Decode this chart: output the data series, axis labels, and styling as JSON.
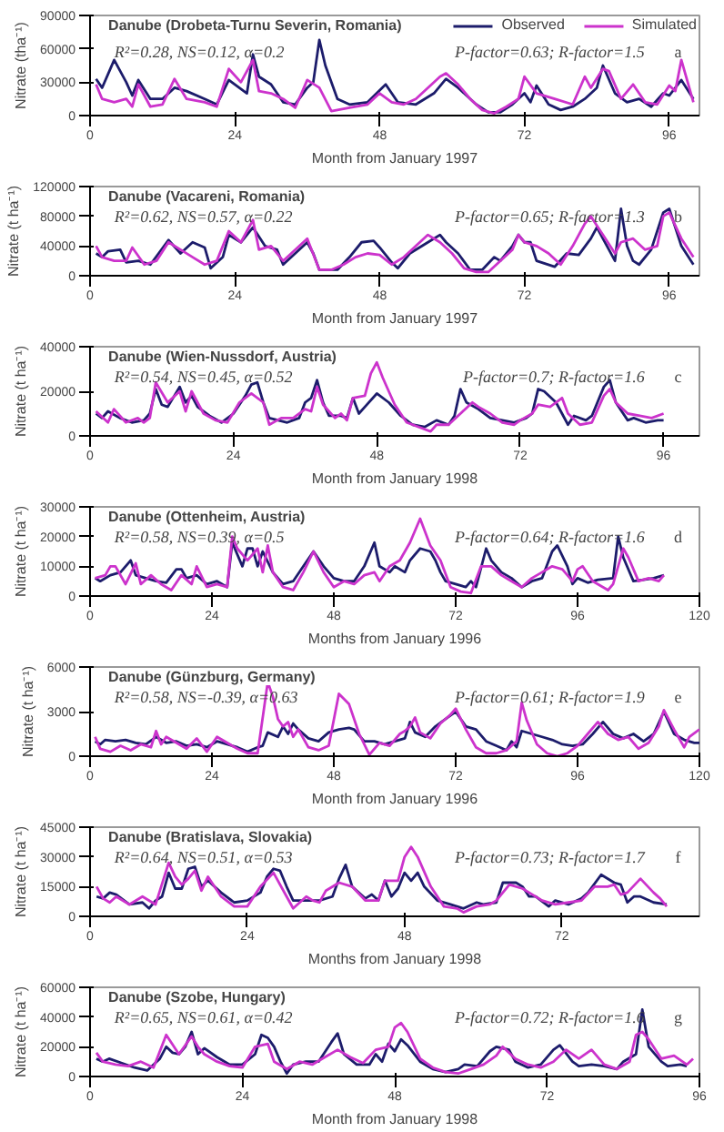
{
  "chart_data": [
    {
      "type": "line",
      "title": "Danube (Drobeta-Turnu Severin, Romania)",
      "xlabel": "Month from January 1997",
      "ylabel": "Nitrate (tha⁻¹)",
      "annotations": [
        "R²=0.28, NS=0.12, α=0.2",
        "P-factor=0.63; R-factor=1.5",
        "a"
      ],
      "xlim": [
        0,
        101
      ],
      "xticks": [
        0,
        24,
        48,
        72,
        96
      ],
      "ylim": [
        0,
        90000
      ],
      "yticks": [
        0,
        30000,
        60000,
        90000
      ],
      "legend": "top right",
      "line_style": "solid",
      "series": [
        {
          "name": "Observed",
          "color": "#1c1c6b",
          "x": [
            1,
            2,
            4,
            6,
            7,
            8,
            10,
            12,
            14,
            16,
            19,
            21,
            23,
            26,
            27,
            28,
            30,
            32,
            34,
            36,
            37,
            38,
            39,
            41,
            43,
            46,
            49,
            51,
            54,
            57,
            59,
            61,
            64,
            66,
            68,
            70,
            72,
            73,
            74,
            76,
            78,
            80,
            82,
            84,
            85,
            87,
            89,
            91,
            93,
            95,
            96,
            98,
            100
          ],
          "values": [
            33000,
            25000,
            50000,
            30000,
            18000,
            32000,
            15000,
            15000,
            25000,
            22000,
            15000,
            10000,
            32000,
            20000,
            55000,
            35000,
            28000,
            12000,
            10000,
            25000,
            30000,
            68000,
            45000,
            15000,
            10000,
            12000,
            28000,
            12000,
            10000,
            20000,
            33000,
            25000,
            10000,
            3000,
            3000,
            10000,
            20000,
            12000,
            27000,
            10000,
            5000,
            8000,
            15000,
            25000,
            45000,
            20000,
            12000,
            15000,
            8000,
            20000,
            18000,
            32000,
            15000
          ]
        },
        {
          "name": "Simulated",
          "color": "#cc33cc",
          "x": [
            1,
            2,
            4,
            6,
            7,
            8,
            10,
            12,
            14,
            16,
            19,
            21,
            23,
            25,
            27,
            28,
            30,
            32,
            34,
            36,
            38,
            40,
            43,
            46,
            48,
            50,
            52,
            54,
            56,
            58,
            59,
            61,
            63,
            65,
            67,
            69,
            71,
            72,
            74,
            77,
            80,
            82,
            83,
            85,
            86,
            88,
            90,
            92,
            94,
            96,
            97,
            98,
            100
          ],
          "values": [
            28000,
            15000,
            12000,
            15000,
            8000,
            28000,
            8000,
            10000,
            33000,
            15000,
            12000,
            8000,
            42000,
            30000,
            50000,
            22000,
            20000,
            15000,
            7000,
            32000,
            25000,
            4000,
            7000,
            10000,
            20000,
            12000,
            10000,
            15000,
            25000,
            35000,
            38000,
            28000,
            15000,
            5000,
            2000,
            8000,
            15000,
            35000,
            20000,
            15000,
            10000,
            35000,
            25000,
            42000,
            40000,
            15000,
            28000,
            12000,
            10000,
            27000,
            22000,
            50000,
            12000
          ]
        }
      ]
    },
    {
      "type": "line",
      "title": "Danube (Vacareni, Romania)",
      "xlabel": "Month from January 1997",
      "ylabel": "Nitrate (t ha⁻¹)",
      "annotations": [
        "R²=0.62, NS=0.57, α=0.22",
        "P-factor=0.65; R-factor=1.3",
        "b"
      ],
      "xlim": [
        0,
        101
      ],
      "xticks": [
        0,
        24,
        48,
        72,
        96
      ],
      "ylim": [
        0,
        120000
      ],
      "yticks": [
        0,
        40000,
        80000,
        120000
      ],
      "line_style": "solid",
      "series": [
        {
          "color": "#1c1c6b",
          "x": [
            1,
            2,
            3,
            5,
            6,
            8,
            10,
            13,
            15,
            17,
            19,
            20,
            22,
            23,
            25,
            27,
            29,
            31,
            32,
            34,
            36,
            37,
            38,
            41,
            43,
            45,
            47,
            48,
            50,
            51,
            53,
            56,
            58,
            59,
            61,
            63,
            65,
            67,
            68,
            70,
            71,
            72,
            73,
            74,
            77,
            79,
            81,
            83,
            84,
            86,
            87,
            88,
            89,
            90,
            91,
            93,
            95,
            96,
            98,
            100
          ],
          "values": [
            30000,
            25000,
            33000,
            35000,
            18000,
            20000,
            15000,
            48000,
            30000,
            45000,
            38000,
            10000,
            25000,
            55000,
            45000,
            65000,
            40000,
            35000,
            15000,
            30000,
            45000,
            30000,
            8000,
            8000,
            25000,
            45000,
            47000,
            38000,
            18000,
            10000,
            30000,
            45000,
            55000,
            45000,
            30000,
            8000,
            8000,
            25000,
            20000,
            40000,
            55000,
            45000,
            45000,
            20000,
            12000,
            30000,
            28000,
            50000,
            65000,
            35000,
            20000,
            90000,
            40000,
            20000,
            15000,
            35000,
            85000,
            90000,
            40000,
            15000
          ]
        },
        {
          "color": "#cc33cc",
          "x": [
            1,
            2,
            4,
            6,
            7,
            9,
            11,
            13,
            15,
            17,
            19,
            21,
            23,
            25,
            27,
            28,
            30,
            32,
            34,
            36,
            38,
            40,
            42,
            44,
            46,
            48,
            50,
            52,
            54,
            56,
            58,
            60,
            62,
            64,
            66,
            68,
            70,
            71,
            72,
            74,
            76,
            78,
            80,
            82,
            83,
            85,
            87,
            88,
            90,
            92,
            94,
            95,
            96,
            98,
            100
          ],
          "values": [
            40000,
            25000,
            20000,
            20000,
            38000,
            15000,
            20000,
            45000,
            35000,
            25000,
            15000,
            20000,
            60000,
            45000,
            75000,
            35000,
            40000,
            20000,
            35000,
            50000,
            8000,
            8000,
            15000,
            25000,
            30000,
            28000,
            15000,
            25000,
            40000,
            55000,
            45000,
            30000,
            10000,
            5000,
            5000,
            20000,
            35000,
            55000,
            45000,
            40000,
            30000,
            15000,
            40000,
            70000,
            80000,
            55000,
            30000,
            45000,
            50000,
            35000,
            40000,
            80000,
            85000,
            50000,
            25000
          ]
        }
      ]
    },
    {
      "type": "line",
      "title": "Danube (Wien-Nussdorf, Austria)",
      "xlabel": "Month from January 1998",
      "ylabel": "Nitrate (t ha⁻¹)",
      "annotations": [
        "R²=0.54, NS=0.45, α=0.52",
        "P-factor=0.7; R-factor=1.6",
        "c"
      ],
      "xlim": [
        0,
        102
      ],
      "xticks": [
        0,
        24,
        48,
        72,
        96
      ],
      "ylim": [
        0,
        40000
      ],
      "yticks": [
        0,
        20000,
        40000
      ],
      "line_style": "solid",
      "series": [
        {
          "color": "#1c1c6b",
          "x": [
            1,
            2,
            3,
            5,
            7,
            9,
            10,
            11,
            12,
            13,
            15,
            16,
            17,
            18,
            20,
            22,
            24,
            26,
            27,
            28,
            29,
            30,
            33,
            35,
            36,
            37,
            38,
            39,
            40,
            42,
            43,
            44,
            45,
            46,
            48,
            50,
            52,
            54,
            56,
            58,
            60,
            61,
            62,
            63,
            65,
            67,
            69,
            71,
            73,
            74,
            75,
            76,
            78,
            79,
            80,
            81,
            83,
            84,
            86,
            87,
            88,
            90,
            91,
            93,
            95,
            96
          ],
          "values": [
            10000,
            8000,
            11000,
            8000,
            6000,
            7000,
            10000,
            21000,
            14000,
            13000,
            22000,
            15000,
            18000,
            13000,
            9000,
            6000,
            10000,
            18000,
            23000,
            24000,
            15000,
            8000,
            6000,
            8000,
            15000,
            17000,
            25000,
            15000,
            9000,
            9000,
            8000,
            17000,
            10000,
            13000,
            19000,
            15000,
            9000,
            5000,
            4000,
            7000,
            5000,
            9000,
            21000,
            15000,
            12000,
            8000,
            7000,
            6000,
            8000,
            10000,
            21000,
            20000,
            15000,
            10000,
            5000,
            9000,
            7000,
            9000,
            22000,
            25000,
            15000,
            7000,
            8000,
            6000,
            7000,
            7000
          ]
        },
        {
          "color": "#cc33cc",
          "x": [
            1,
            3,
            4,
            6,
            8,
            9,
            10,
            11,
            13,
            15,
            16,
            17,
            19,
            21,
            23,
            25,
            27,
            29,
            30,
            32,
            34,
            36,
            37,
            38,
            39,
            41,
            42,
            43,
            44,
            46,
            47,
            48,
            49,
            51,
            53,
            55,
            57,
            58,
            60,
            62,
            64,
            65,
            67,
            69,
            71,
            72,
            74,
            75,
            77,
            79,
            80,
            82,
            84,
            86,
            87,
            88,
            90,
            92,
            94,
            96
          ],
          "values": [
            11000,
            6000,
            12000,
            6000,
            8000,
            6000,
            8000,
            24000,
            15000,
            20000,
            11000,
            20000,
            10000,
            7000,
            6000,
            15000,
            19000,
            15000,
            5000,
            8000,
            8000,
            12000,
            11000,
            22000,
            14000,
            8000,
            10000,
            7000,
            17000,
            18000,
            28000,
            33000,
            26000,
            14000,
            6000,
            4000,
            2000,
            5000,
            5000,
            10000,
            15000,
            13000,
            10000,
            6000,
            5000,
            7000,
            10000,
            14000,
            13000,
            17000,
            10000,
            5000,
            6000,
            18000,
            21000,
            15000,
            10000,
            9000,
            8000,
            10000
          ]
        }
      ]
    },
    {
      "type": "line",
      "title": "Danube (Ottenheim, Austria)",
      "xlabel": "Months from January 1996",
      "ylabel": "Nitrate (t ha⁻¹)",
      "annotations": [
        "R²=0.58, NS=0.39, α=0.5",
        "P-factor=0.64; R-factor=1.6",
        "d"
      ],
      "xlim": [
        0,
        120
      ],
      "xticks": [
        0,
        24,
        48,
        72,
        96,
        120
      ],
      "ylim": [
        0,
        30000
      ],
      "yticks": [
        0,
        10000,
        20000,
        30000
      ],
      "line_style": "solid",
      "series": [
        {
          "color": "#1c1c6b",
          "x": [
            1,
            2,
            4,
            6,
            8,
            9,
            11,
            13,
            15,
            17,
            18,
            19,
            21,
            23,
            25,
            27,
            28,
            30,
            31,
            32,
            33,
            34,
            36,
            38,
            40,
            42,
            44,
            46,
            48,
            50,
            52,
            54,
            56,
            57,
            59,
            60,
            62,
            63,
            65,
            67,
            68,
            69,
            70,
            72,
            74,
            75,
            76,
            78,
            79,
            81,
            83,
            85,
            87,
            89,
            91,
            92,
            94,
            95,
            96,
            98,
            100,
            103,
            104,
            105,
            107,
            109,
            111,
            113
          ],
          "values": [
            6000,
            5000,
            7000,
            8000,
            12000,
            7000,
            6000,
            5000,
            4500,
            9000,
            9000,
            6000,
            7000,
            4000,
            5000,
            3000,
            18000,
            10000,
            16000,
            16000,
            10000,
            15000,
            8000,
            4000,
            5000,
            10000,
            15000,
            10000,
            6000,
            5000,
            5000,
            10000,
            18000,
            10000,
            8000,
            10000,
            8000,
            12000,
            16000,
            15000,
            12000,
            8000,
            5000,
            4000,
            3000,
            5000,
            3000,
            16000,
            12000,
            8000,
            6000,
            3000,
            5000,
            6000,
            15000,
            17000,
            10000,
            4000,
            6000,
            4500,
            5500,
            6000,
            20000,
            13000,
            5000,
            5500,
            6000,
            7000
          ]
        },
        {
          "color": "#cc33cc",
          "x": [
            1,
            3,
            4,
            5,
            7,
            9,
            10,
            12,
            14,
            16,
            18,
            20,
            21,
            23,
            25,
            27,
            28,
            29,
            31,
            33,
            34,
            35,
            36,
            38,
            40,
            42,
            44,
            46,
            48,
            50,
            52,
            54,
            56,
            57,
            59,
            61,
            63,
            65,
            67,
            69,
            71,
            73,
            75,
            77,
            79,
            81,
            83,
            85,
            87,
            89,
            91,
            93,
            95,
            96,
            97,
            99,
            101,
            102,
            103,
            105,
            106,
            108,
            110,
            112,
            113
          ],
          "values": [
            6000,
            7000,
            10000,
            10000,
            4000,
            11000,
            4000,
            7000,
            4000,
            2000,
            7000,
            4000,
            10000,
            3000,
            4000,
            3000,
            20000,
            16000,
            12000,
            16000,
            8000,
            17000,
            8000,
            3000,
            2000,
            8000,
            15000,
            8000,
            3000,
            5000,
            4000,
            7000,
            8000,
            5000,
            10000,
            12000,
            18000,
            26000,
            17000,
            12000,
            3000,
            1500,
            1000,
            10000,
            10000,
            7000,
            5000,
            3000,
            6000,
            8000,
            10000,
            9000,
            5000,
            9000,
            10000,
            5000,
            3000,
            2000,
            4000,
            16000,
            13000,
            5000,
            6000,
            5000,
            7000
          ]
        }
      ]
    },
    {
      "type": "line",
      "title": "Danube (Günzburg, Germany)",
      "xlabel": "Month from January 1996",
      "ylabel": "Nitrate (t ha⁻¹)",
      "annotations": [
        "R²=0.58, NS=-0.39, α=0.63",
        "P-factor=0.61; R-factor=1.9",
        "e"
      ],
      "xlim": [
        0,
        120
      ],
      "xticks": [
        0,
        24,
        48,
        72,
        96,
        120
      ],
      "ylim": [
        0,
        6000
      ],
      "yticks": [
        0,
        3000,
        6000
      ],
      "line_style": "solid",
      "series": [
        {
          "color": "#1c1c6b",
          "x": [
            1,
            2,
            3,
            5,
            7,
            9,
            11,
            13,
            15,
            17,
            19,
            21,
            23,
            25,
            27,
            29,
            31,
            33,
            34,
            35,
            37,
            38,
            39,
            40,
            41,
            43,
            45,
            47,
            49,
            51,
            52,
            54,
            56,
            58,
            60,
            62,
            63,
            64,
            66,
            68,
            70,
            72,
            74,
            76,
            78,
            80,
            82,
            83,
            84,
            85,
            87,
            89,
            91,
            93,
            95,
            97,
            99,
            101,
            103,
            105,
            107,
            109,
            111,
            113,
            115,
            117,
            119,
            120
          ],
          "values": [
            1000,
            800,
            1100,
            1000,
            1100,
            900,
            800,
            1300,
            900,
            1000,
            700,
            800,
            600,
            1000,
            800,
            600,
            300,
            600,
            700,
            1600,
            1300,
            2000,
            1500,
            2200,
            1800,
            1200,
            1000,
            1600,
            1800,
            1900,
            1800,
            1000,
            1000,
            800,
            1000,
            1200,
            2300,
            1600,
            1300,
            2000,
            2500,
            3000,
            2000,
            1800,
            1000,
            700,
            400,
            1000,
            600,
            1700,
            1500,
            1300,
            1100,
            800,
            700,
            800,
            1500,
            2300,
            1500,
            1200,
            1500,
            1000,
            1500,
            3000,
            1500,
            1100,
            900,
            900
          ]
        },
        {
          "color": "#cc33cc",
          "x": [
            1,
            2,
            4,
            6,
            8,
            10,
            12,
            13,
            14,
            15,
            17,
            19,
            21,
            23,
            25,
            27,
            29,
            31,
            33,
            35,
            36,
            37,
            38,
            39,
            40,
            41,
            43,
            45,
            47,
            49,
            51,
            53,
            55,
            57,
            59,
            61,
            62,
            63,
            64,
            65,
            67,
            69,
            71,
            72,
            74,
            76,
            78,
            80,
            82,
            84,
            85,
            86,
            88,
            90,
            92,
            94,
            96,
            98,
            100,
            102,
            104,
            106,
            108,
            110,
            112,
            113,
            115,
            117,
            118,
            120
          ],
          "values": [
            1300,
            500,
            300,
            700,
            400,
            800,
            600,
            1700,
            800,
            1300,
            900,
            500,
            1200,
            300,
            1300,
            900,
            500,
            200,
            200,
            5000,
            4000,
            2500,
            2000,
            2300,
            1300,
            1800,
            600,
            400,
            700,
            4200,
            3500,
            1500,
            100,
            900,
            700,
            1500,
            1700,
            2000,
            2600,
            1600,
            1200,
            2200,
            2800,
            3200,
            1800,
            600,
            200,
            200,
            400,
            1000,
            3600,
            2400,
            800,
            200,
            0,
            200,
            700,
            1500,
            2300,
            1500,
            1100,
            1300,
            500,
            900,
            2000,
            3100,
            1800,
            600,
            1300,
            1800
          ]
        }
      ]
    },
    {
      "type": "line",
      "title": "Danube (Bratislava, Slovakia)",
      "xlabel": "Months from January 1998",
      "ylabel": "Nitrate (t ha⁻¹)",
      "annotations": [
        "R²=0.64, NS=0.51, α=0.53",
        "P-factor=0.73; R-factor=1.7",
        "f"
      ],
      "xlim": [
        0,
        93
      ],
      "xticks": [
        0,
        24,
        48,
        72
      ],
      "ylim": [
        0,
        45000
      ],
      "yticks": [
        0,
        15000,
        30000,
        45000
      ],
      "line_style": "solid",
      "series": [
        {
          "color": "#1c1c6b",
          "x": [
            1,
            2,
            3,
            4,
            6,
            8,
            9,
            10,
            11,
            12,
            13,
            14,
            15,
            16,
            17,
            18,
            20,
            22,
            24,
            26,
            27,
            28,
            29,
            30,
            31,
            33,
            35,
            37,
            38,
            39,
            40,
            42,
            43,
            44,
            45,
            46,
            47,
            48,
            49,
            50,
            51,
            53,
            55,
            57,
            59,
            60,
            62,
            63,
            65,
            66,
            67,
            68,
            70,
            71,
            73,
            75,
            76,
            78,
            80,
            81,
            82,
            83,
            84,
            86,
            88
          ],
          "values": [
            10000,
            9000,
            12000,
            11000,
            6000,
            7000,
            4000,
            8000,
            10000,
            22000,
            14000,
            14000,
            24000,
            25000,
            15000,
            18000,
            12000,
            7000,
            8000,
            12000,
            20000,
            24000,
            23000,
            15000,
            8000,
            8000,
            8000,
            10000,
            19000,
            26000,
            15000,
            9000,
            11000,
            8000,
            18000,
            10000,
            14000,
            22000,
            18000,
            22000,
            15000,
            8000,
            6000,
            4000,
            7000,
            6000,
            7000,
            17000,
            17000,
            15000,
            10000,
            10000,
            5000,
            8000,
            6000,
            9000,
            12000,
            21000,
            17000,
            16000,
            7000,
            10000,
            10000,
            7000,
            6000
          ]
        },
        {
          "color": "#cc33cc",
          "x": [
            1,
            2,
            3,
            4,
            6,
            8,
            10,
            12,
            13,
            14,
            15,
            16,
            17,
            18,
            20,
            22,
            24,
            26,
            28,
            30,
            31,
            33,
            34,
            35,
            36,
            38,
            40,
            42,
            44,
            45,
            47,
            48,
            49,
            50,
            52,
            54,
            56,
            57,
            59,
            61,
            62,
            64,
            66,
            67,
            69,
            71,
            73,
            75,
            77,
            79,
            80,
            81,
            82,
            84,
            86,
            87,
            88
          ],
          "values": [
            15000,
            9000,
            7000,
            10000,
            6000,
            10000,
            6000,
            27000,
            20000,
            16000,
            19000,
            23000,
            13000,
            20000,
            10000,
            5000,
            5000,
            15000,
            22000,
            10000,
            4000,
            10000,
            8000,
            7000,
            13000,
            17000,
            15000,
            8000,
            8000,
            18000,
            18000,
            30000,
            35000,
            30000,
            15000,
            5000,
            4000,
            2000,
            5000,
            6000,
            8000,
            16000,
            14000,
            12000,
            8000,
            6000,
            7000,
            8000,
            15000,
            15000,
            16000,
            11000,
            12000,
            19000,
            12000,
            9000,
            5000
          ]
        }
      ]
    },
    {
      "type": "line",
      "title": "Danube (Szobe, Hungary)",
      "xlabel": "Month from January 1998",
      "ylabel": "Nitrate (t ha⁻¹)",
      "annotations": [
        "R²=0.65, NS=0.61, α=0.42",
        "P-factor=0.72; R-factor=1.6",
        "g"
      ],
      "xlim": [
        0,
        96
      ],
      "xticks": [
        0,
        24,
        48,
        72,
        96
      ],
      "ylim": [
        0,
        60000
      ],
      "yticks": [
        0,
        20000,
        40000,
        60000
      ],
      "line_style": "solid",
      "series": [
        {
          "color": "#1c1c6b",
          "x": [
            1,
            2,
            3,
            5,
            7,
            9,
            11,
            12,
            13,
            14,
            15,
            16,
            17,
            18,
            20,
            22,
            24,
            26,
            27,
            28,
            29,
            30,
            31,
            32,
            34,
            36,
            38,
            39,
            40,
            42,
            44,
            45,
            46,
            47,
            48,
            49,
            50,
            52,
            54,
            56,
            58,
            59,
            61,
            63,
            64,
            66,
            67,
            69,
            71,
            73,
            74,
            76,
            77,
            79,
            81,
            83,
            84,
            86,
            87,
            88,
            90,
            91,
            93,
            94
          ],
          "values": [
            12000,
            10000,
            12000,
            9000,
            6000,
            4000,
            12000,
            20000,
            16000,
            15000,
            20000,
            30000,
            15000,
            19000,
            13000,
            8000,
            8000,
            15000,
            28000,
            26000,
            20000,
            10000,
            2000,
            8000,
            10000,
            10000,
            23000,
            29000,
            15000,
            8000,
            8000,
            15000,
            10000,
            22000,
            17000,
            25000,
            21000,
            10000,
            5000,
            3000,
            5000,
            8000,
            7000,
            17000,
            20000,
            18000,
            10000,
            6000,
            8000,
            18000,
            21000,
            10000,
            7000,
            8000,
            7000,
            5000,
            10000,
            15000,
            45000,
            20000,
            10000,
            7000,
            8000,
            7000
          ]
        },
        {
          "color": "#cc33cc",
          "x": [
            1,
            2,
            4,
            6,
            8,
            10,
            12,
            14,
            16,
            17,
            18,
            20,
            22,
            24,
            26,
            28,
            29,
            31,
            33,
            35,
            37,
            39,
            41,
            43,
            45,
            47,
            48,
            49,
            50,
            52,
            54,
            56,
            58,
            60,
            62,
            64,
            65,
            67,
            69,
            71,
            73,
            75,
            77,
            79,
            81,
            83,
            85,
            86,
            87,
            88,
            90,
            92,
            94,
            95
          ],
          "values": [
            16000,
            10000,
            8000,
            7000,
            10000,
            6000,
            28000,
            15000,
            27000,
            20000,
            15000,
            10000,
            7000,
            6000,
            20000,
            22000,
            10000,
            5000,
            10000,
            8000,
            13000,
            18000,
            13000,
            9000,
            18000,
            20000,
            33000,
            36000,
            30000,
            12000,
            6000,
            3000,
            2000,
            5000,
            8000,
            14000,
            20000,
            12000,
            8000,
            6000,
            10000,
            18000,
            12000,
            18000,
            8000,
            5000,
            10000,
            28000,
            30000,
            25000,
            12000,
            14000,
            8000,
            12000
          ]
        }
      ]
    }
  ]
}
